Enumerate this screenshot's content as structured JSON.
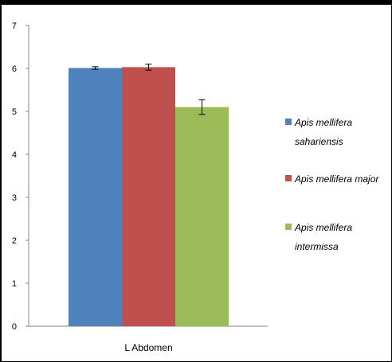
{
  "chart_data": {
    "type": "bar",
    "categories": [
      "L Abdomen"
    ],
    "series": [
      {
        "name": "Apis mellifera sahariensis",
        "legend_lines": [
          "Apis mellifera",
          "sahariensis"
        ],
        "values": [
          6.01
        ],
        "error": [
          0.03
        ],
        "color": "#4F81BD"
      },
      {
        "name": "Apis mellifera major",
        "legend_lines": [
          "Apis mellifera major"
        ],
        "values": [
          6.03
        ],
        "error": [
          0.07
        ],
        "color": "#C0504D"
      },
      {
        "name": "Apis mellifera intermissa",
        "legend_lines": [
          "Apis mellifera",
          "intermissa"
        ],
        "values": [
          5.1
        ],
        "error": [
          0.17
        ],
        "color": "#9BBB59"
      }
    ],
    "title": "",
    "xlabel": "",
    "ylabel": "",
    "ylim": [
      0,
      7
    ],
    "yticks": [
      0,
      1,
      2,
      3,
      4,
      5,
      6,
      7
    ],
    "grid": false,
    "legend_position": "right"
  }
}
